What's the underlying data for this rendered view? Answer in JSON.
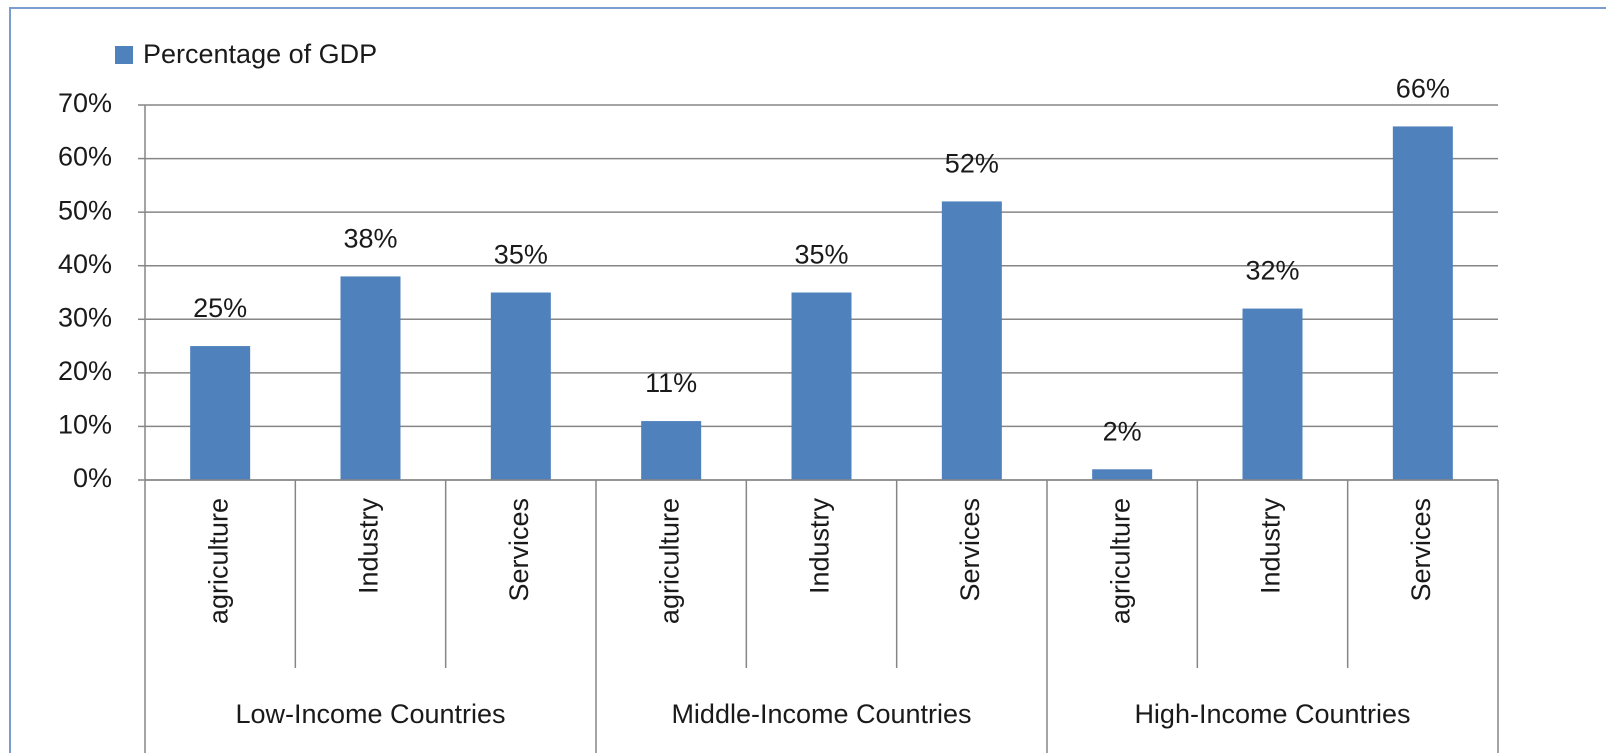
{
  "chart_data": {
    "type": "bar",
    "categories": [
      "agriculture",
      "Industry",
      "Services",
      "agriculture",
      "Industry",
      "Services",
      "agriculture",
      "Industry",
      "Services"
    ],
    "groups": [
      "Low-Income Countries",
      "Middle-Income Countries",
      "High-Income Countries"
    ],
    "series": [
      {
        "name": "Percentage of GDP",
        "color": "#4f81bd",
        "values": [
          25,
          38,
          35,
          11,
          35,
          52,
          2,
          32,
          66
        ],
        "value_labels": [
          "25%",
          "38%",
          "35%",
          "11%",
          "35%",
          "52%",
          "2%",
          "32%",
          "66%"
        ]
      }
    ],
    "ylim": [
      0,
      70
    ],
    "yticks": [
      {
        "value": 0,
        "label": "0%"
      },
      {
        "value": 10,
        "label": "10%"
      },
      {
        "value": 20,
        "label": "20%"
      },
      {
        "value": 30,
        "label": "30%"
      },
      {
        "value": 40,
        "label": "40%"
      },
      {
        "value": 50,
        "label": "50%"
      },
      {
        "value": 60,
        "label": "60%"
      },
      {
        "value": 70,
        "label": "70%"
      }
    ],
    "grid": true,
    "legend": "top-left"
  }
}
